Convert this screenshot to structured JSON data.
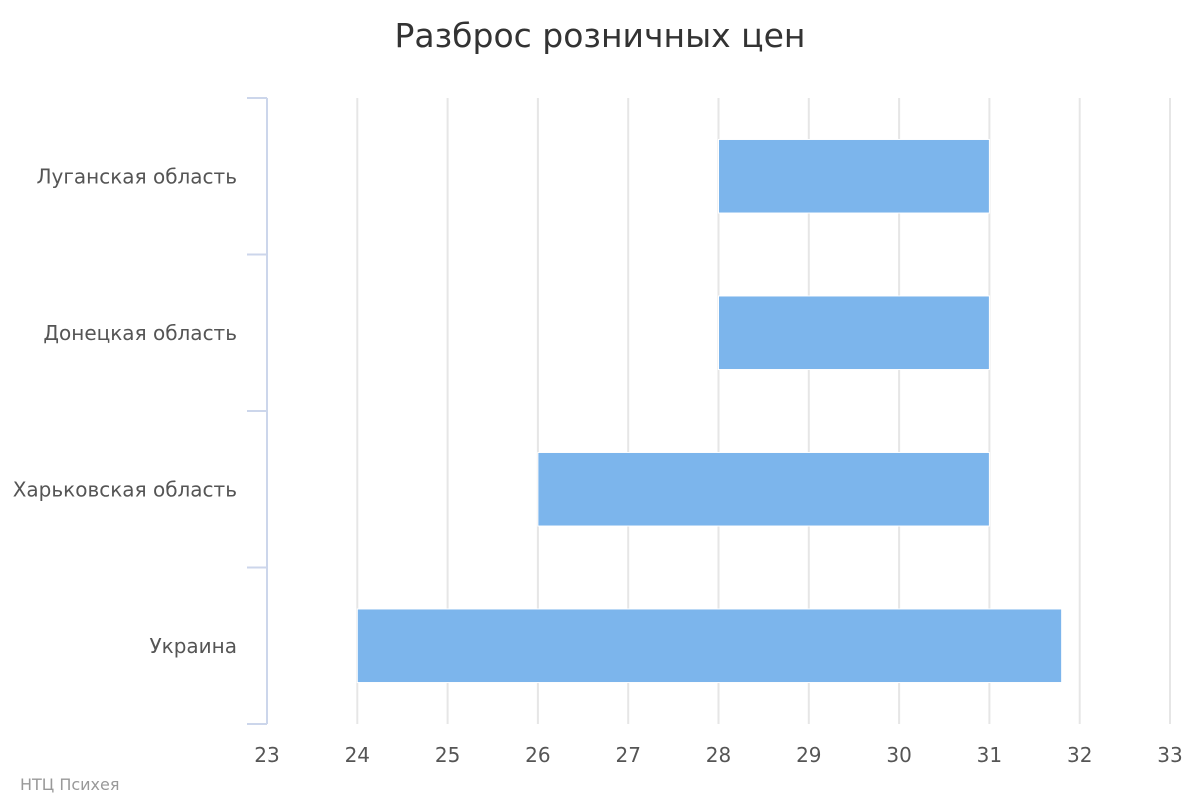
{
  "chart_data": {
    "type": "bar",
    "orientation": "horizontal",
    "title": "Разброс розничных цен",
    "credit": "НТЦ Психея",
    "categories": [
      "Луганская область",
      "Донецкая область",
      "Харьковская область",
      "Украина"
    ],
    "ranges": [
      {
        "category": "Луганская область",
        "low": 28,
        "high": 31
      },
      {
        "category": "Донецкая область",
        "low": 28,
        "high": 31
      },
      {
        "category": "Харьковская область",
        "low": 26,
        "high": 31
      },
      {
        "category": "Украина",
        "low": 24,
        "high": 31.8
      }
    ],
    "xlim": [
      23,
      33
    ],
    "xticks": [
      "23",
      "24",
      "25",
      "26",
      "27",
      "28",
      "29",
      "30",
      "31",
      "32",
      "33"
    ],
    "grid": true,
    "legend": "none",
    "colors": {
      "bar": "#7cb5ec",
      "grid": "#e6e6e6",
      "axis": "#ccd6eb",
      "text": "#555555",
      "title": "#333333",
      "credit": "#999999"
    }
  }
}
